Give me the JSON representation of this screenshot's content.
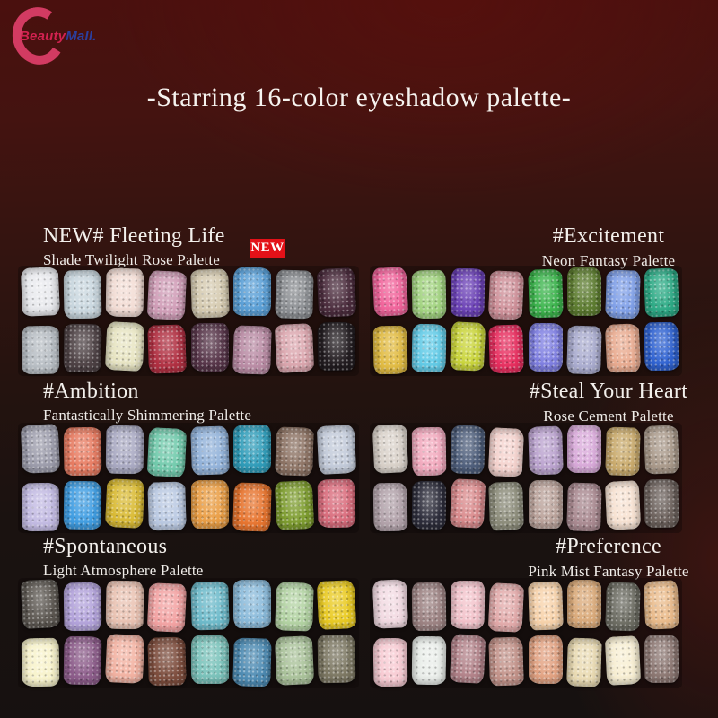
{
  "logo": {
    "mark": "C",
    "mark_color": "#d23b62",
    "text_primary": "Beauty",
    "text_primary_color": "#d22250",
    "text_secondary": "Mall.",
    "text_secondary_color": "#2b3f9e"
  },
  "title": "-Starring 16-color eyeshadow palette-",
  "badge": {
    "label": "NEW",
    "bg_color": "#e31118"
  },
  "palettes": [
    {
      "title": "NEW# Fleeting Life",
      "subtitle": "Shade Twilight Rose Palette",
      "has_new_badge": true,
      "swatches": [
        "#e9eaee",
        "#c9d7df",
        "#f3ddd5",
        "#d09db7",
        "#d6cbb1",
        "#5ba0d7",
        "#8b8e92",
        "#4c2d3e",
        "#b8bec4",
        "#4e4245",
        "#e8e5c3",
        "#b13042",
        "#573549",
        "#ba8ca5",
        "#dca7af",
        "#231d21"
      ]
    },
    {
      "title": "#Excitement",
      "subtitle": "Neon Fantasy Palette",
      "has_new_badge": false,
      "swatches": [
        "#f2659c",
        "#a3d481",
        "#6b41b6",
        "#cf9099",
        "#3cb54d",
        "#5e7d31",
        "#80a0e8",
        "#2dab86",
        "#e2bc43",
        "#63cce8",
        "#cad53b",
        "#e82e5f",
        "#7f7fe2",
        "#abadd0",
        "#eaac91",
        "#3063d2"
      ]
    },
    {
      "title": "#Ambition",
      "subtitle": "Fantastically Shimmering Palette",
      "has_new_badge": false,
      "swatches": [
        "#9d9dac",
        "#e87c62",
        "#aaaac3",
        "#71caac",
        "#93b3da",
        "#309dba",
        "#8d7364",
        "#c3cbda",
        "#c3bbe3",
        "#409ee3",
        "#dabb35",
        "#bbcae3",
        "#ea9e45",
        "#e8752f",
        "#7e9d2f",
        "#da6d7d"
      ]
    },
    {
      "title": "#Steal Your Heart",
      "subtitle": "Rose Cement Palette",
      "has_new_badge": false,
      "swatches": [
        "#dad2ca",
        "#f3abbf",
        "#4e5e7b",
        "#f5d3ce",
        "#bba3cf",
        "#daabdb",
        "#caab6d",
        "#aa9a8b",
        "#b3a3ab",
        "#2d2d3b",
        "#da8b8d",
        "#8d8d7b",
        "#bba39b",
        "#ab8b92",
        "#f8e3d3",
        "#6d625d"
      ]
    },
    {
      "title": "#Spontaneous",
      "subtitle": "Light Atmosphere Palette",
      "has_new_badge": false,
      "swatches": [
        "#5d5852",
        "#b3a3db",
        "#eac3b3",
        "#f3a3a3",
        "#6ebbcb",
        "#8bbbdb",
        "#b3d3a3",
        "#eacb23",
        "#f8f3cb",
        "#8d5d8b",
        "#f3b3a3",
        "#7d4d3d",
        "#7bc3bb",
        "#4d8bb3",
        "#abc39b",
        "#7d7863"
      ]
    },
    {
      "title": "#Preference",
      "subtitle": "Pink Mist Fantasy Palette",
      "has_new_badge": false,
      "swatches": [
        "#f3dbe3",
        "#9d8383",
        "#f3c3cb",
        "#e3abab",
        "#f8d3ab",
        "#dbab7b",
        "#6d6d63",
        "#eabb8b",
        "#f8cbd3",
        "#eaeeea",
        "#b3838a",
        "#c3938a",
        "#e3a383",
        "#eadbb3",
        "#f8efd3",
        "#8d7873"
      ]
    }
  ]
}
